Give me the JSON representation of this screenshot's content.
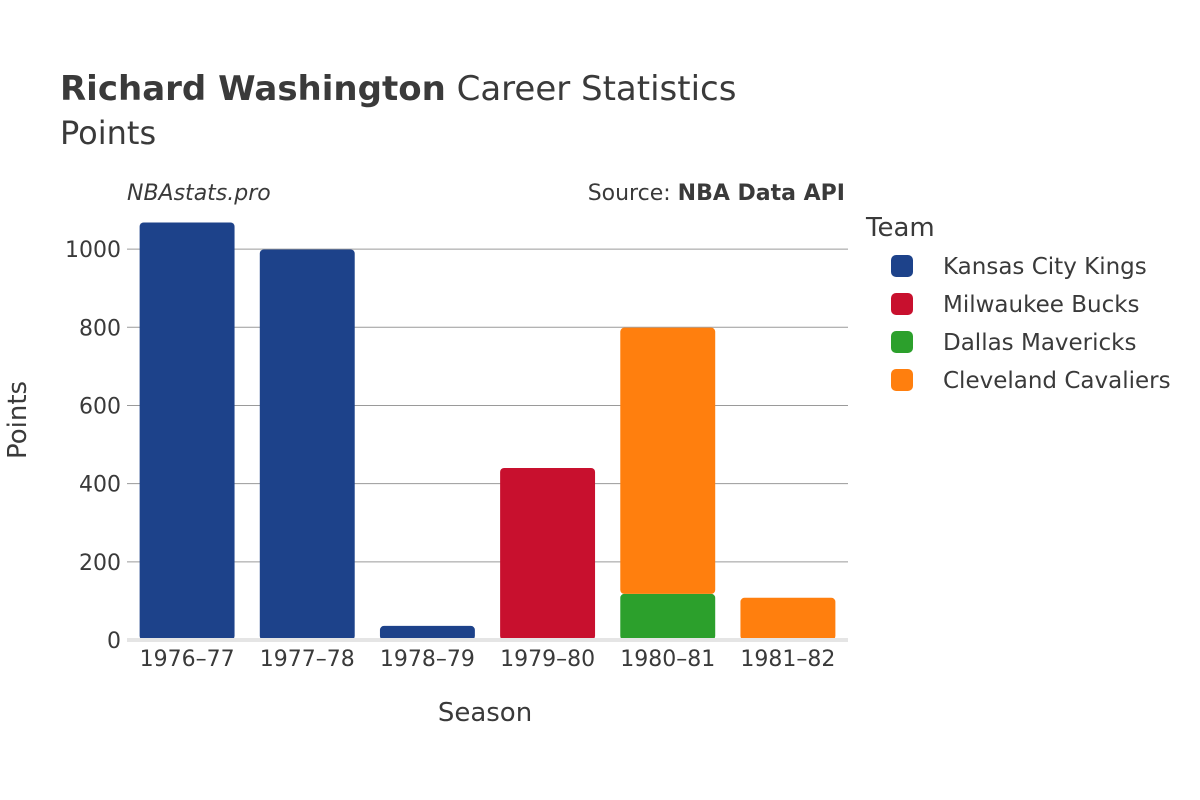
{
  "header": {
    "title_bold": "Richard Washington",
    "title_rest": " Career Statistics",
    "subtitle": "Points"
  },
  "watermark": "NBAstats.pro",
  "source": {
    "prefix": "Source: ",
    "name": "NBA Data API"
  },
  "chart_data": {
    "type": "bar",
    "stacked": true,
    "xlabel": "Season",
    "ylabel": "Points",
    "ylim": [
      0,
      1100
    ],
    "yticks": [
      0,
      200,
      400,
      600,
      800,
      1000
    ],
    "grid": true,
    "legend_title": "Team",
    "legend_position": "right",
    "categories": [
      "1976–77",
      "1977–78",
      "1978–79",
      "1979–80",
      "1980–81",
      "1981–82"
    ],
    "series": [
      {
        "name": "Kansas City Kings",
        "color": "#1d428a",
        "values": [
          1068,
          999,
          36,
          0,
          0,
          0
        ]
      },
      {
        "name": "Milwaukee Bucks",
        "color": "#c8102e",
        "values": [
          0,
          0,
          0,
          440,
          0,
          0
        ]
      },
      {
        "name": "Dallas Mavericks",
        "color": "#2ca02c",
        "values": [
          0,
          0,
          0,
          0,
          118,
          0
        ]
      },
      {
        "name": "Cleveland Cavaliers",
        "color": "#ff7f0e",
        "values": [
          0,
          0,
          0,
          0,
          681,
          108
        ]
      }
    ]
  }
}
